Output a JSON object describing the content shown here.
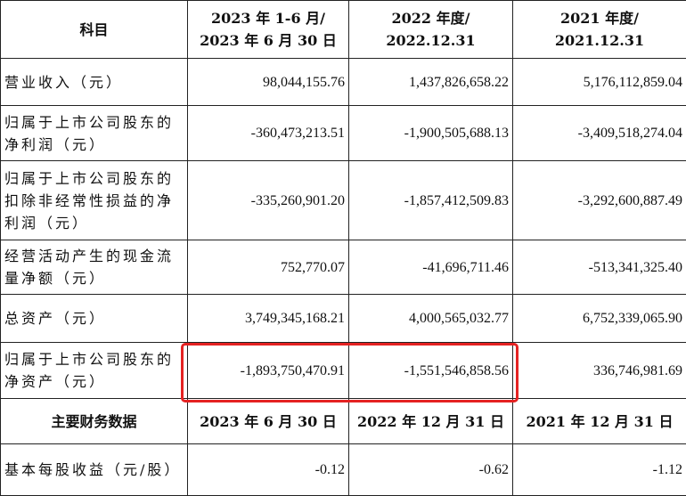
{
  "table": {
    "header": {
      "subject": "科目",
      "col1_line1": "2023 年 1-6 月/",
      "col1_line2": "2023 年 6 月 30 日",
      "col2_line1": "2022 年度/",
      "col2_line2": "2022.12.31",
      "col3_line1": "2021 年度/",
      "col3_line2": "2021.12.31"
    },
    "rows": [
      {
        "label": "营业收入（元）",
        "v2023": "98,044,155.76",
        "v2022": "1,437,826,658.22",
        "v2021": "5,176,112,859.04"
      },
      {
        "label": "归属于上市公司股东的净利润（元）",
        "v2023": "-360,473,213.51",
        "v2022": "-1,900,505,688.13",
        "v2021": "-3,409,518,274.04"
      },
      {
        "label": "归属于上市公司股东的扣除非经常性损益的净利润（元）",
        "v2023": "-335,260,901.20",
        "v2022": "-1,857,412,509.83",
        "v2021": "-3,292,600,887.49"
      },
      {
        "label": "经营活动产生的现金流量净额（元）",
        "v2023": "752,770.07",
        "v2022": "-41,696,711.46",
        "v2021": "-513,341,325.40"
      },
      {
        "label": "总资产（元）",
        "v2023": "3,749,345,168.21",
        "v2022": "4,000,565,032.77",
        "v2021": "6,752,339,065.90"
      },
      {
        "label": "归属于上市公司股东的净资产（元）",
        "v2023": "-1,893,750,470.91",
        "v2022": "-1,551,546,858.56",
        "v2021": "336,746,981.69"
      }
    ],
    "subheader": {
      "title": "主要财务数据",
      "col1": "2023 年 6 月 30 日",
      "col2": "2022 年 12 月 31 日",
      "col3": "2021 年 12 月 31 日"
    },
    "eps_row": {
      "label": "基本每股收益（元/股）",
      "v2023": "-0.12",
      "v2022": "-0.62",
      "v2021": "-1.12"
    }
  },
  "highlight_color": "#e52222"
}
